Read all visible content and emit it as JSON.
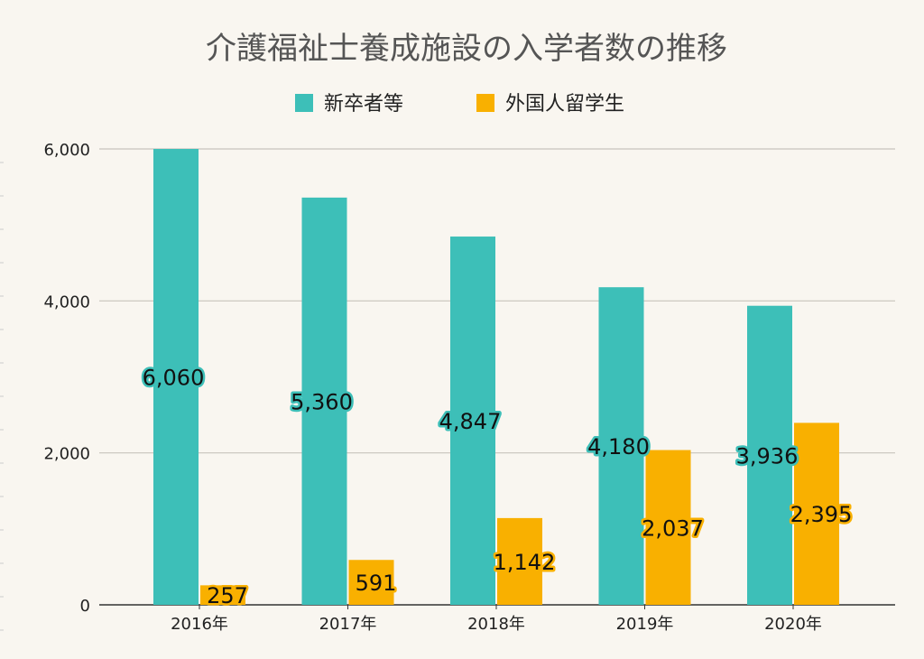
{
  "chart_data": {
    "type": "bar",
    "title": "介護福祉士養成施設の入学者数の推移",
    "xlabel": "",
    "ylabel": "",
    "categories": [
      "2016年",
      "2017年",
      "2018年",
      "2019年",
      "2020年"
    ],
    "series": [
      {
        "name": "新卒者等",
        "color": "#3dbfb8",
        "values": [
          6060,
          5360,
          4847,
          4180,
          3936
        ],
        "labels": [
          "6,060",
          "5,360",
          "4,847",
          "4,180",
          "3,936"
        ]
      },
      {
        "name": "外国人留学生",
        "color": "#f9b000",
        "values": [
          257,
          591,
          1142,
          2037,
          2395
        ],
        "labels": [
          "257",
          "591",
          "1,142",
          "2,037",
          "2,395"
        ]
      }
    ],
    "ylim": [
      0,
      6000
    ],
    "yticks": [
      0,
      2000,
      4000,
      6000
    ],
    "ytick_labels": [
      "0",
      "2,000",
      "4,000",
      "6,000"
    ],
    "grid": true,
    "legend": "top-center"
  }
}
